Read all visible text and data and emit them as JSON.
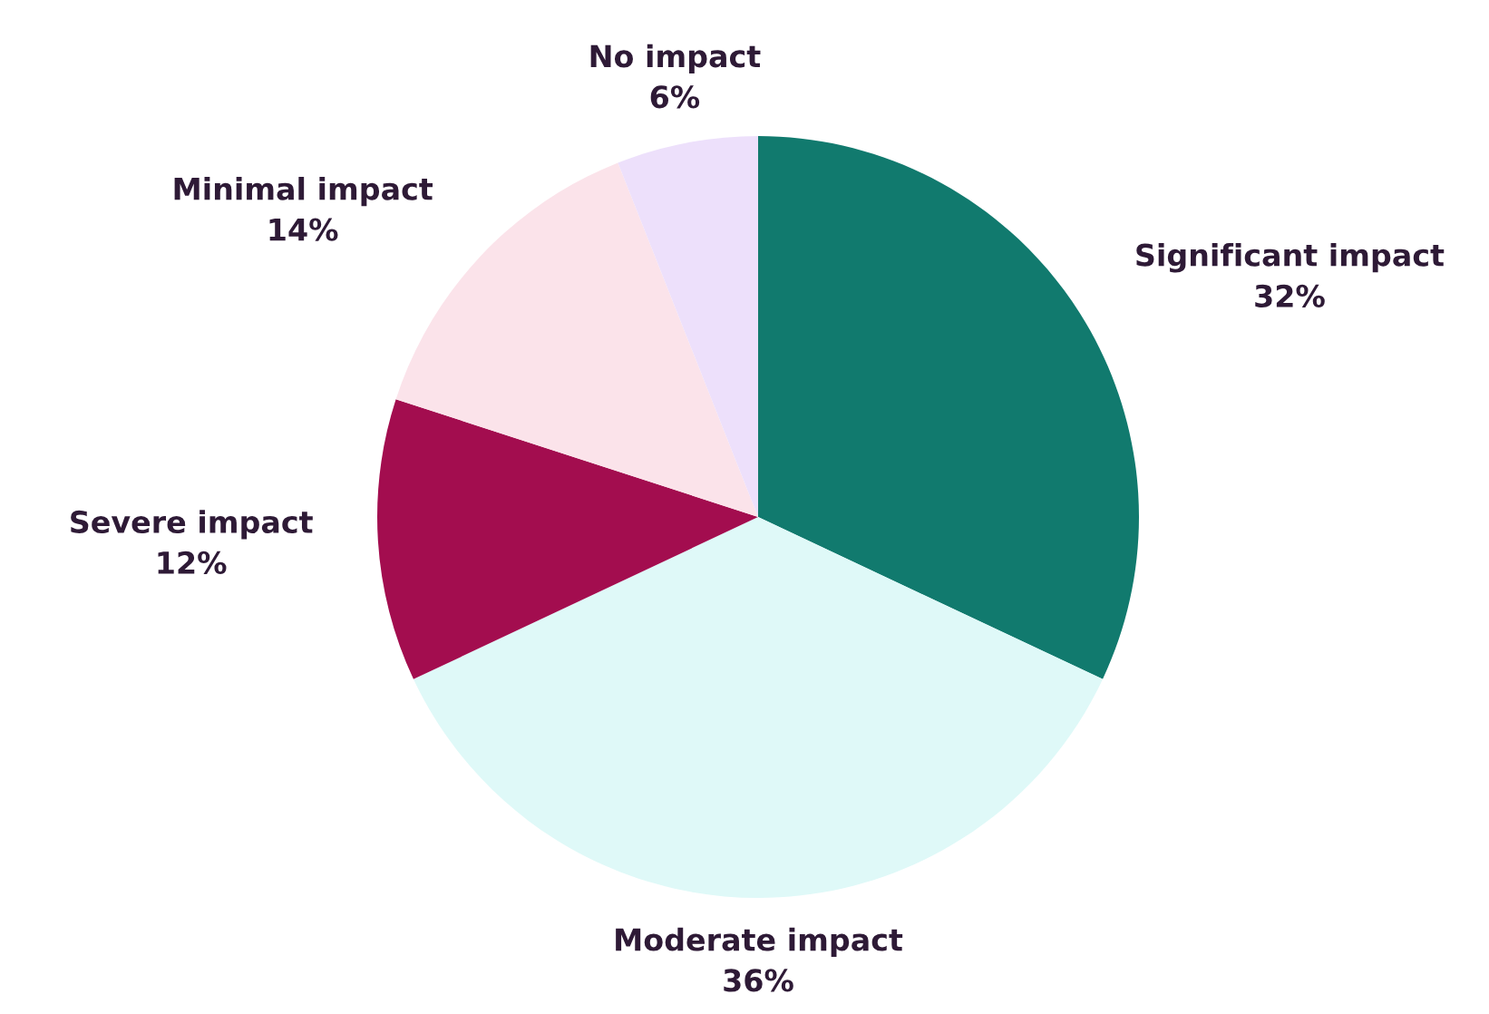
{
  "chart_data": {
    "type": "pie",
    "categories": [
      "Significant impact",
      "Moderate impact",
      "Severe impact",
      "Minimal impact",
      "No impact"
    ],
    "values": [
      32,
      36,
      12,
      14,
      6
    ],
    "value_labels": [
      "32%",
      "36%",
      "12%",
      "14%",
      "6%"
    ],
    "colors": [
      "#117a6e",
      "#dff9f8",
      "#a30d4f",
      "#fbe3ea",
      "#ede0fb"
    ],
    "legend": false
  }
}
